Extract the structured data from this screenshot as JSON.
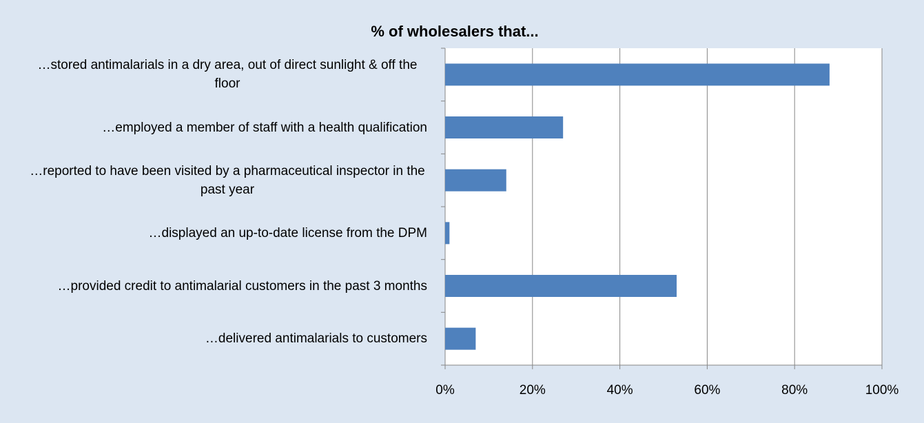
{
  "chart_data": {
    "type": "bar",
    "orientation": "horizontal",
    "title": "% of wholesalers that...",
    "categories": [
      "…stored antimalarials in a dry area, out of direct sunlight & off the floor",
      "…employed a member of staff with a health qualification",
      "…reported to have been visited by a pharmaceutical inspector in the past year",
      "…displayed an up-to-date license from the DPM",
      "…provided credit to antimalarial customers in the past 3 months",
      "…delivered antimalarials to customers"
    ],
    "values": [
      88,
      27,
      14,
      1,
      53,
      7
    ],
    "color": "#4f81bd",
    "xlim": [
      0,
      100
    ],
    "xticks": [
      {
        "value": 0,
        "label": "0%"
      },
      {
        "value": 20,
        "label": "20%"
      },
      {
        "value": 40,
        "label": "40%"
      },
      {
        "value": 60,
        "label": "60%"
      },
      {
        "value": 80,
        "label": "80%"
      },
      {
        "value": 100,
        "label": "100%"
      }
    ],
    "grid": true
  }
}
